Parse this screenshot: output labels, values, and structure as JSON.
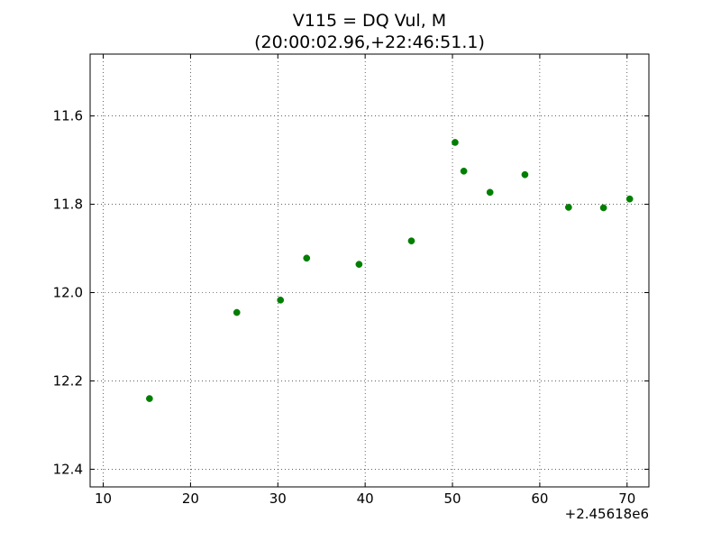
{
  "chart_data": {
    "type": "scatter",
    "title": "V115 = DQ Vul, M",
    "subtitle": "(20:00:02.96,+22:46:51.1)",
    "xlabel": "",
    "ylabel": "",
    "x_offset_label": "+2.45618e6",
    "xlim": [
      8.5,
      72.5
    ],
    "ylim": [
      12.44,
      11.46
    ],
    "y_inverted": true,
    "grid": true,
    "marker_color": "#007f00",
    "x_ticks": [
      10,
      20,
      30,
      40,
      50,
      60,
      70
    ],
    "x_tick_labels": [
      "10",
      "20",
      "30",
      "40",
      "50",
      "60",
      "70"
    ],
    "y_ticks": [
      11.6,
      11.8,
      12.0,
      12.2,
      12.4
    ],
    "y_tick_labels": [
      "11.6",
      "11.8",
      "12.0",
      "12.2",
      "12.4"
    ],
    "series": [
      {
        "x": [
          15.3,
          25.3,
          30.3,
          33.3,
          39.3,
          45.3,
          50.3,
          51.3,
          54.3,
          58.3,
          63.3,
          67.3,
          70.3
        ],
        "y": [
          12.24,
          12.045,
          12.017,
          11.922,
          11.936,
          11.883,
          11.66,
          11.725,
          11.773,
          11.733,
          11.807,
          11.808,
          11.788
        ]
      }
    ]
  }
}
